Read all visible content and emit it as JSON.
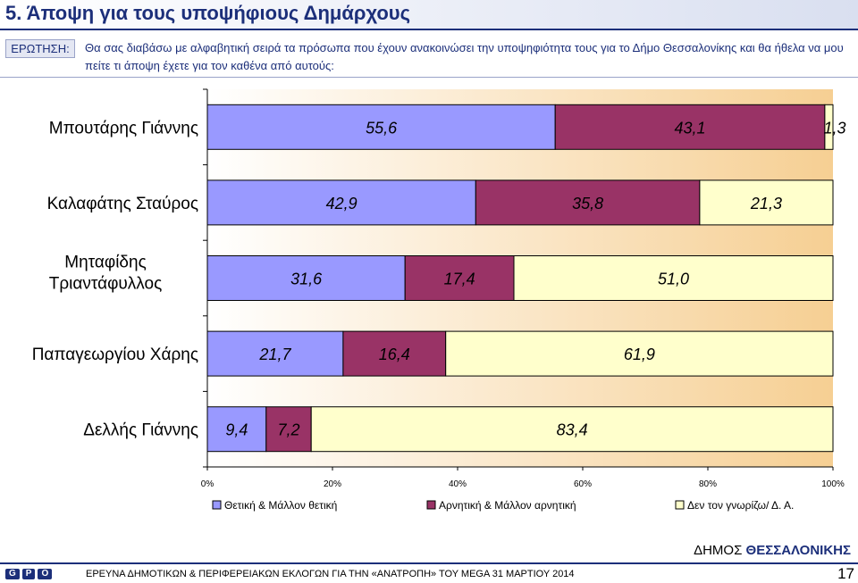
{
  "header": {
    "title": "5.  Άποψη για τους υποψήφιους Δημάρχους",
    "question_label": "ΕΡΩΤΗΣΗ:",
    "question_text": "Θα σας διαβάσω με αλφαβητική σειρά τα πρόσωπα που έχουν ανακοινώσει την υποψηφιότητα τους για το Δήμο Θεσσαλονίκης και θα ήθελα να μου πείτε τι άποψη έχετε για τον καθένα από αυτούς:"
  },
  "chart_data": {
    "type": "bar",
    "orientation": "horizontal",
    "stacked": true,
    "categories": [
      "Μπουτάρης Γιάννης",
      "Καλαφάτης Σταύρος",
      "Μηταφίδης Τριαντάφυλλος",
      "Παπαγεωργίου Χάρης",
      "Δελλής Γιάννης"
    ],
    "series": [
      {
        "name": "Θετική & Μάλλον θετική",
        "color": "#9999ff",
        "values": [
          55.6,
          42.9,
          31.6,
          21.7,
          9.4
        ]
      },
      {
        "name": "Αρνητική & Μάλλον αρνητική",
        "color": "#993366",
        "values": [
          43.1,
          35.8,
          17.4,
          16.4,
          7.2
        ]
      },
      {
        "name": "Δεν τον γνωρίζω/ Δ. Α.",
        "color": "#ffffcc",
        "values": [
          1.3,
          21.3,
          51.0,
          61.9,
          83.4
        ]
      }
    ],
    "value_labels": [
      [
        "55,6",
        "43,1",
        "1,3"
      ],
      [
        "42,9",
        "35,8",
        "21,3"
      ],
      [
        "31,6",
        "17,4",
        "51,0"
      ],
      [
        "21,7",
        "16,4",
        "61,9"
      ],
      [
        "9,4",
        "7,2",
        "83,4"
      ]
    ],
    "xlim": [
      0,
      100
    ],
    "x_ticks": [
      "0%",
      "20%",
      "40%",
      "60%",
      "80%",
      "100%"
    ],
    "legend_position": "bottom",
    "background": "gradient-white-to-orange"
  },
  "footer": {
    "brand_prefix": "ΔΗΜΟΣ ",
    "brand_city": "ΘΕΣΣΑΛΟΝΙΚΗΣ",
    "logo_text": [
      "G",
      "P",
      "O"
    ],
    "text": "ΕΡΕΥΝΑ ΔΗΜΟΤΙΚΩΝ & ΠΕΡΙΦΕΡΕΙΑΚΩΝ ΕΚΛΟΓΩΝ ΓΙΑ ΤΗΝ «ΑΝΑΤΡΟΠΗ» ΤΟΥ MEGA 31 ΜΑΡΤΙΟΥ 2014",
    "page_number": "17"
  }
}
